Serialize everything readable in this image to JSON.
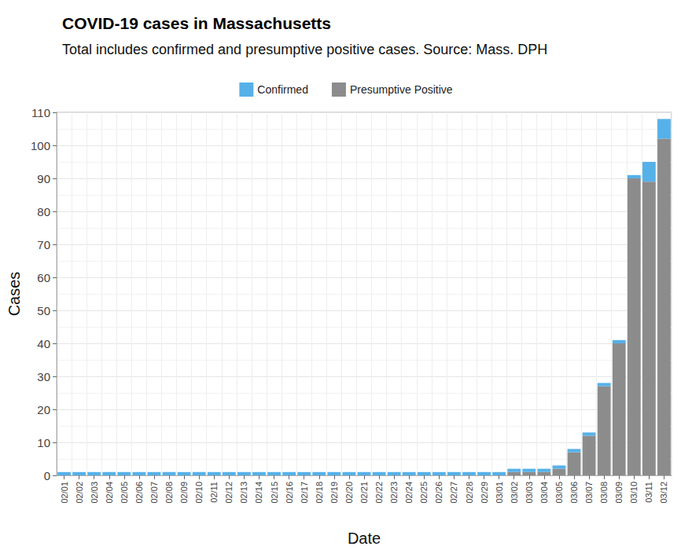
{
  "chart_data": {
    "type": "bar",
    "title": "COVID-19 cases in Massachusetts",
    "subtitle": "Total includes confirmed and presumptive positive cases. Source: Mass. DPH",
    "x_label": "Date",
    "y_label": "Cases",
    "categories": [
      "02/01",
      "02/02",
      "02/03",
      "02/04",
      "02/05",
      "02/06",
      "02/07",
      "02/08",
      "02/09",
      "02/10",
      "02/11",
      "02/12",
      "02/13",
      "02/14",
      "02/15",
      "02/16",
      "02/17",
      "02/18",
      "02/19",
      "02/20",
      "02/21",
      "02/22",
      "02/23",
      "02/24",
      "02/25",
      "02/26",
      "02/27",
      "02/28",
      "02/29",
      "03/01",
      "03/02",
      "03/03",
      "03/04",
      "03/05",
      "03/06",
      "03/07",
      "03/08",
      "03/09",
      "03/10",
      "03/11",
      "03/12"
    ],
    "series": [
      {
        "name": "Confirmed",
        "color": "#56b1e8",
        "values": [
          1,
          1,
          1,
          1,
          1,
          1,
          1,
          1,
          1,
          1,
          1,
          1,
          1,
          1,
          1,
          1,
          1,
          1,
          1,
          1,
          1,
          1,
          1,
          1,
          1,
          1,
          1,
          1,
          1,
          1,
          1,
          1,
          1,
          1,
          1,
          1,
          1,
          1,
          1,
          6,
          6
        ]
      },
      {
        "name": "Presumptive Positive",
        "color": "#8c8c8c",
        "values": [
          0,
          0,
          0,
          0,
          0,
          0,
          0,
          0,
          0,
          0,
          0,
          0,
          0,
          0,
          0,
          0,
          0,
          0,
          0,
          0,
          0,
          0,
          0,
          0,
          0,
          0,
          0,
          0,
          0,
          0,
          1,
          1,
          1,
          2,
          7,
          12,
          27,
          40,
          90,
          89,
          102
        ]
      }
    ],
    "stacked": true,
    "legend": "top",
    "grid": true,
    "ylim": [
      0,
      110
    ],
    "yticks": [
      0,
      10,
      20,
      30,
      40,
      50,
      60,
      70,
      80,
      90,
      100,
      110
    ]
  }
}
